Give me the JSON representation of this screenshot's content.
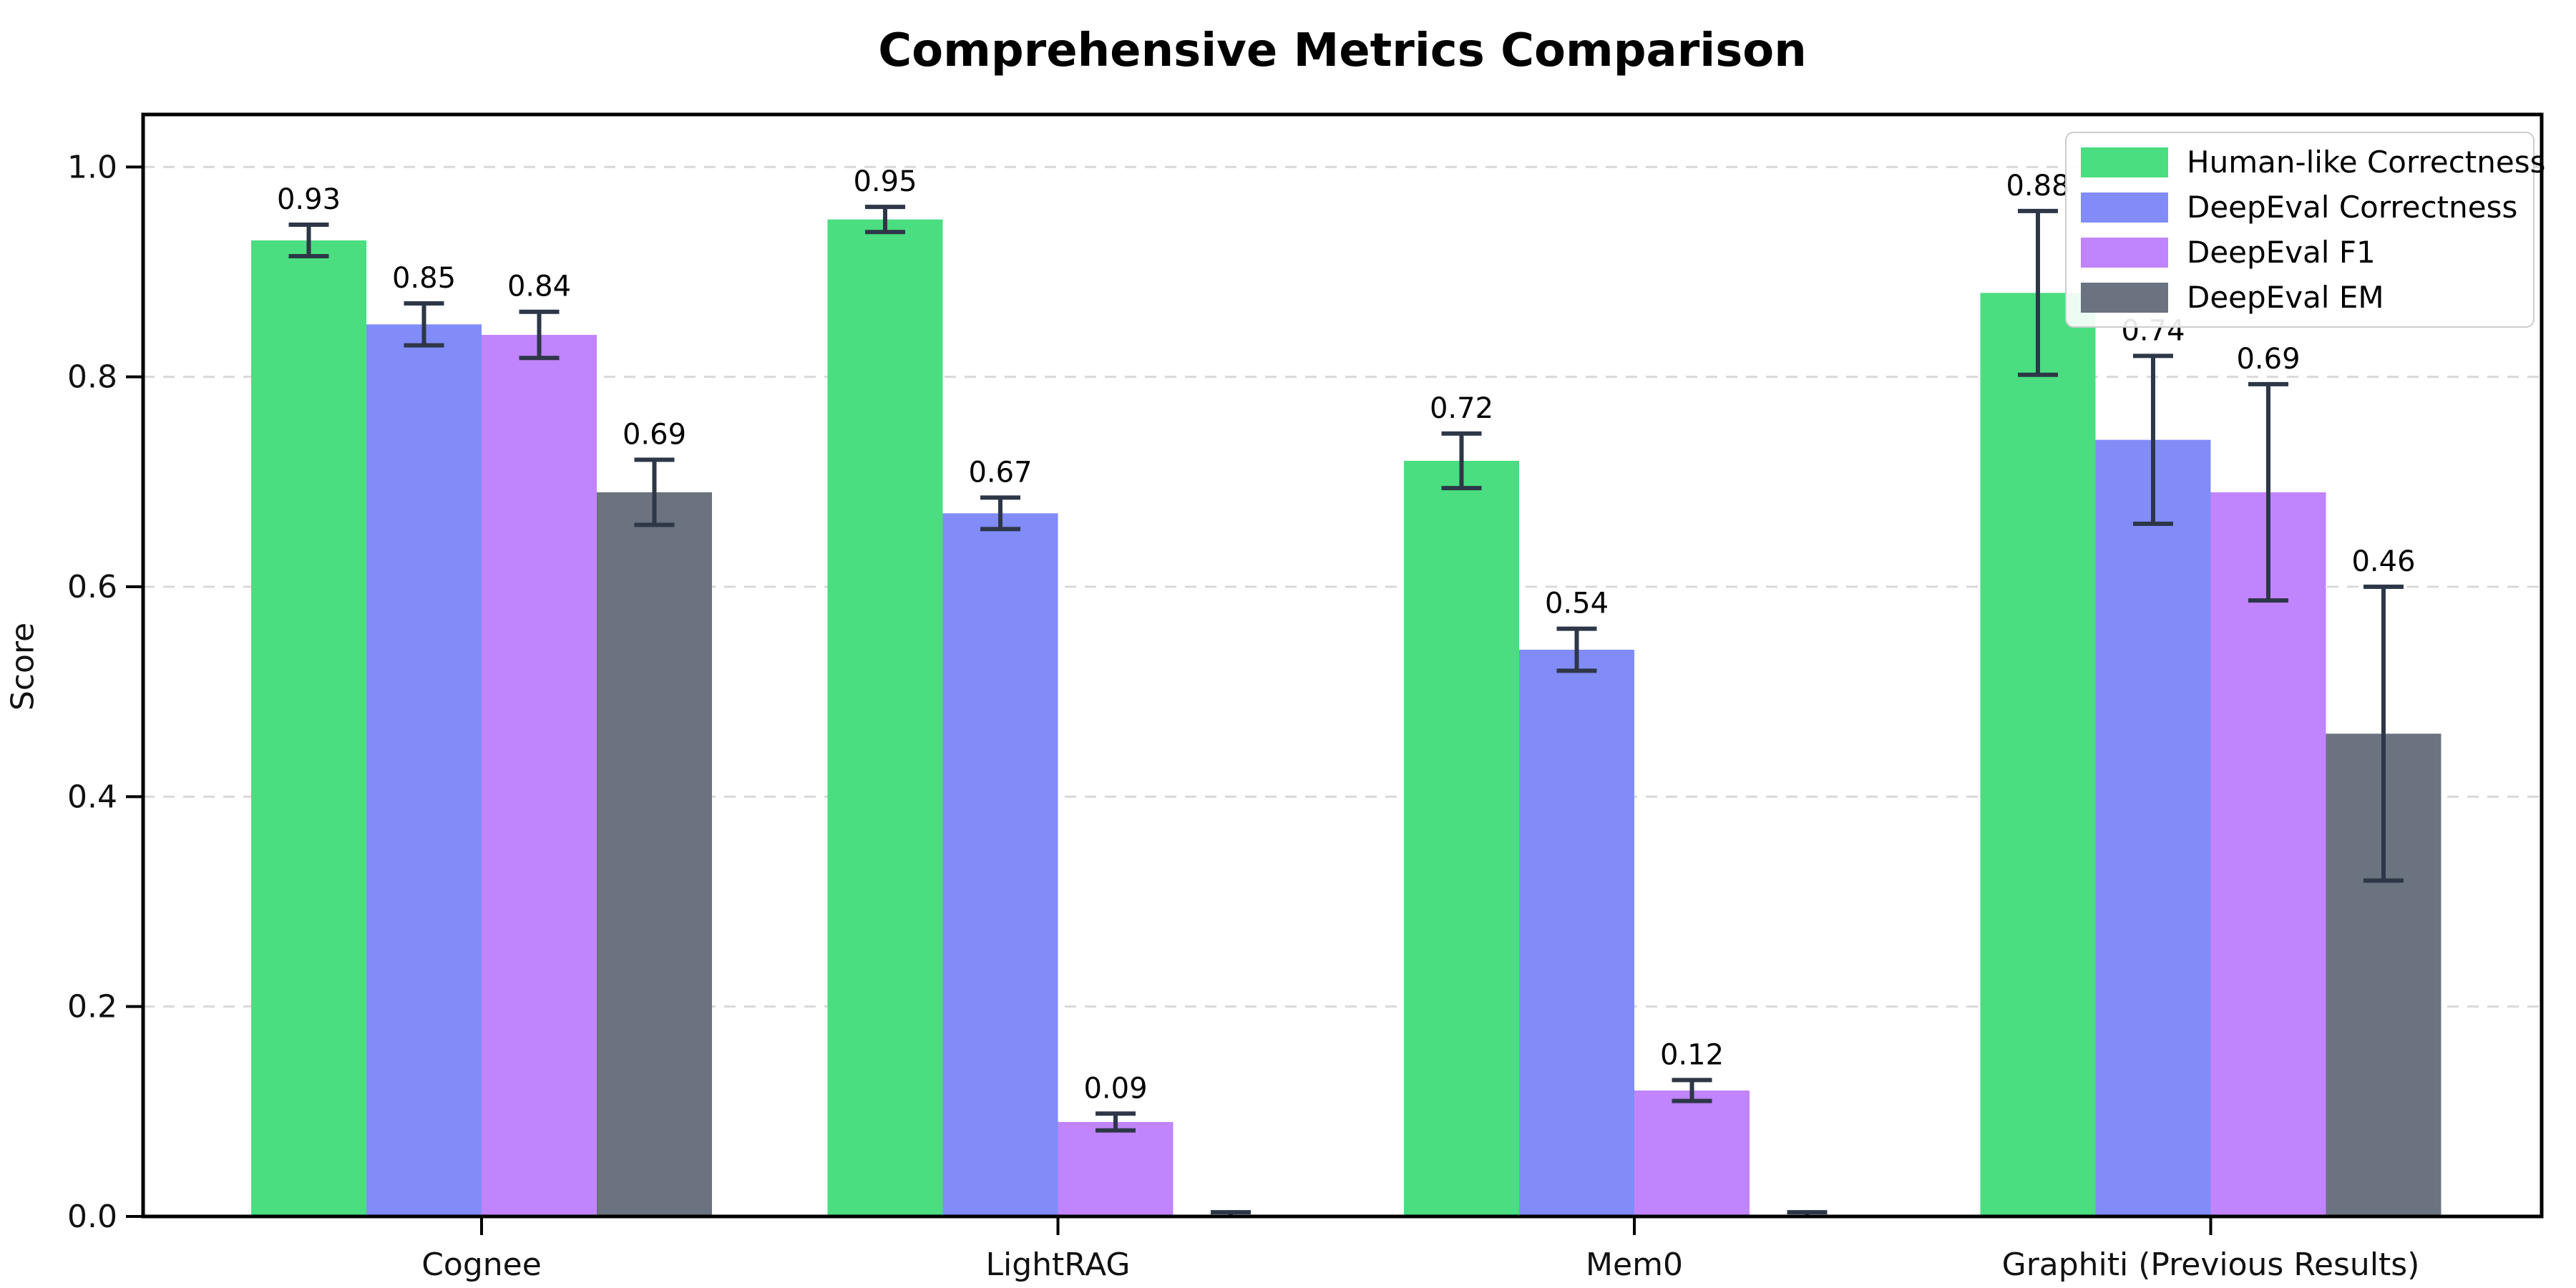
{
  "chart_data": {
    "type": "bar",
    "title": "Comprehensive Metrics Comparison",
    "ylabel": "Score",
    "xlabel": "",
    "categories": [
      "Cognee",
      "LightRAG",
      "Mem0",
      "Graphiti (Previous Results)"
    ],
    "series": [
      {
        "name": "Human-like Correctness",
        "color": "#4ade80",
        "values": [
          0.93,
          0.95,
          0.72,
          0.88
        ],
        "errors": [
          0.015,
          0.012,
          0.026,
          0.078
        ],
        "labels": [
          "0.93",
          "0.95",
          "0.72",
          "0.88"
        ]
      },
      {
        "name": "DeepEval Correctness",
        "color": "#818cf8",
        "values": [
          0.85,
          0.67,
          0.54,
          0.74
        ],
        "errors": [
          0.02,
          0.015,
          0.02,
          0.08
        ],
        "labels": [
          "0.85",
          "0.67",
          "0.54",
          "0.74"
        ]
      },
      {
        "name": "DeepEval F1",
        "color": "#c084fc",
        "values": [
          0.84,
          0.09,
          0.12,
          0.69
        ],
        "errors": [
          0.022,
          0.008,
          0.01,
          0.103
        ],
        "labels": [
          "0.84",
          "0.09",
          "0.12",
          "0.69"
        ]
      },
      {
        "name": "DeepEval EM",
        "color": "#6b7280",
        "values": [
          0.69,
          0.0,
          0.0,
          0.46
        ],
        "errors": [
          0.031,
          0.004,
          0.004,
          0.14
        ],
        "labels": [
          "0.69",
          "",
          "",
          "0.46"
        ]
      }
    ],
    "ylim": [
      0,
      1.05
    ],
    "yticks": [
      "0.0",
      "0.2",
      "0.4",
      "0.6",
      "0.8",
      "1.0"
    ],
    "grid": "horizontal dashed",
    "legend_position": "upper right",
    "errorbar_color": "#2d3748",
    "grid_color": "#d9d9d9",
    "axis_color": "#000000"
  }
}
